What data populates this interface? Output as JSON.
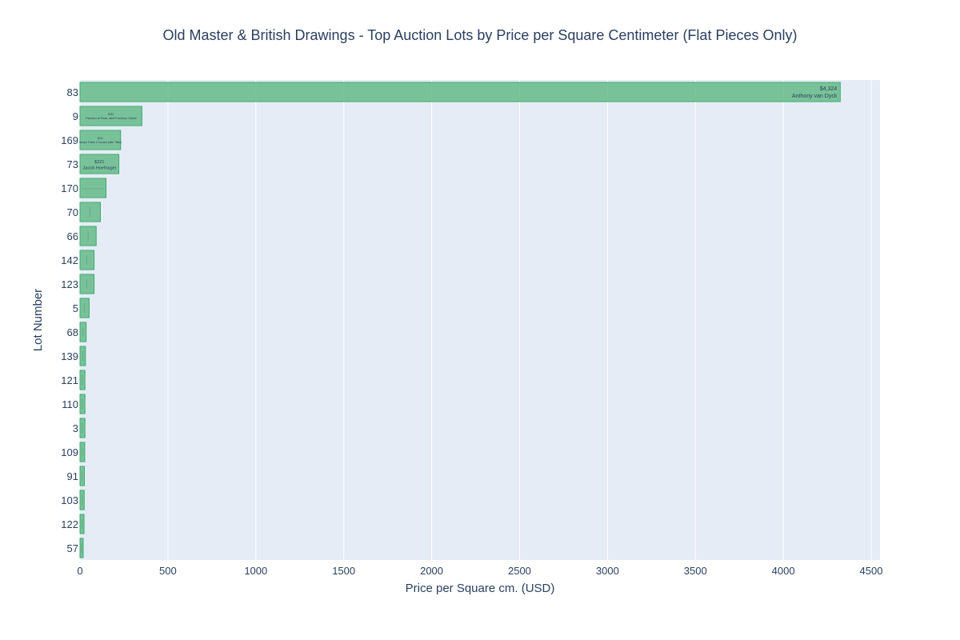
{
  "chart_data": {
    "type": "bar",
    "orientation": "horizontal",
    "title": "Old Master & British Drawings - Top Auction Lots by Price per Square Centimeter (Flat Pieces Only)",
    "xlabel": "Price per Square cm. (USD)",
    "ylabel": "Lot Number",
    "xlim": [
      0,
      4550
    ],
    "xticks": [
      0,
      500,
      1000,
      1500,
      2000,
      2500,
      3000,
      3500,
      4000,
      4500
    ],
    "grid": true,
    "colors": {
      "bar_fill": "#66bb88",
      "bar_stroke": "#3aaa6a",
      "plot_bg": "#e5ecf6",
      "grid": "#ffffff",
      "text": "#2a3f5f"
    },
    "categories": [
      "83",
      "9",
      "169",
      "73",
      "170",
      "70",
      "66",
      "142",
      "123",
      "5",
      "68",
      "139",
      "121",
      "110",
      "3",
      "109",
      "91",
      "103",
      "122",
      "57"
    ],
    "values": [
      4324,
      352,
      231,
      221,
      148,
      116,
      92,
      80,
      80,
      52,
      35,
      31,
      28,
      28,
      28,
      27,
      25,
      24,
      23,
      18
    ],
    "bar_labels": [
      {
        "value_text": "$4,324",
        "artist": "Anthony van Dyck",
        "readable": true
      },
      {
        "value_text": "$352",
        "artist": "Francisco de Paula, detail Francesco Salviati",
        "readable": true
      },
      {
        "value_text": "$231",
        "artist": "Jacopo Palma il Giovane (after Titian)",
        "readable": true
      },
      {
        "value_text": "$221",
        "artist": "Jacob Hoefnagel",
        "readable": true
      },
      {
        "value_text": "",
        "artist": "",
        "readable": false
      },
      {
        "value_text": "",
        "artist": "",
        "readable": false
      },
      {
        "value_text": "",
        "artist": "",
        "readable": false
      },
      {
        "value_text": "",
        "artist": "",
        "readable": false
      },
      {
        "value_text": "",
        "artist": "",
        "readable": false
      },
      {
        "value_text": "",
        "artist": "",
        "readable": false
      },
      {
        "value_text": "",
        "artist": "",
        "readable": false
      },
      {
        "value_text": "",
        "artist": "",
        "readable": false
      },
      {
        "value_text": "",
        "artist": "",
        "readable": false
      },
      {
        "value_text": "",
        "artist": "",
        "readable": false
      },
      {
        "value_text": "",
        "artist": "",
        "readable": false
      },
      {
        "value_text": "",
        "artist": "",
        "readable": false
      },
      {
        "value_text": "",
        "artist": "",
        "readable": false
      },
      {
        "value_text": "",
        "artist": "",
        "readable": false
      },
      {
        "value_text": "",
        "artist": "",
        "readable": false
      },
      {
        "value_text": "",
        "artist": "",
        "readable": false
      }
    ]
  }
}
